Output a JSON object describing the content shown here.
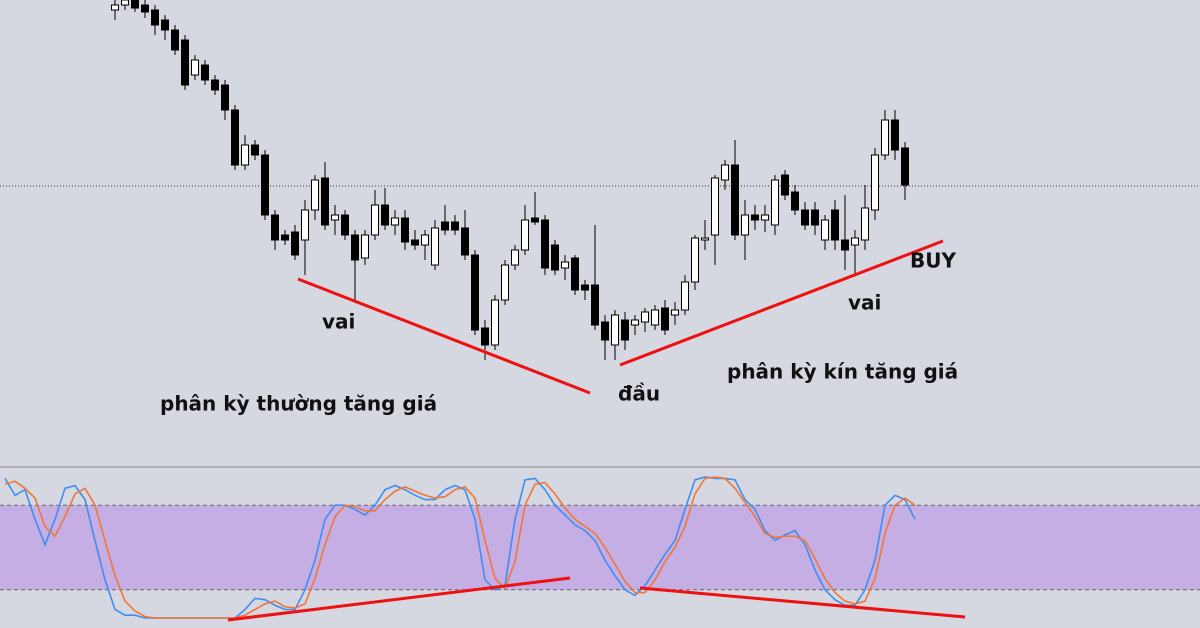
{
  "chart_data": [
    {
      "type": "candlestick",
      "annotations": [
        "vai",
        "phân kỳ thường tăng giá",
        "đầu",
        "phân kỳ kín tăng giá",
        "vai",
        "BUY"
      ],
      "xlim": [
        -0.5,
        119.5
      ],
      "ylim": [
        0,
        460
      ],
      "price_line": 274,
      "up_color": "#ffffff",
      "down_color": "#000000",
      "x": [
        11,
        12,
        13,
        14,
        15,
        16,
        17,
        18,
        19,
        20,
        21,
        22,
        23,
        24,
        25,
        26,
        27,
        28,
        29,
        30,
        31,
        32,
        33,
        34,
        35,
        36,
        37,
        38,
        39,
        40,
        41,
        42,
        43,
        44,
        45,
        46,
        47,
        48,
        49,
        50,
        51,
        52,
        53,
        54,
        55,
        56,
        57,
        58,
        59,
        60,
        61,
        62,
        63,
        64,
        65,
        66,
        67,
        68,
        69,
        70,
        71,
        72,
        73,
        74,
        75,
        76,
        77,
        78,
        79,
        80,
        81,
        82,
        83,
        84,
        85,
        86,
        87,
        88,
        89,
        90
      ],
      "open": [
        450,
        455,
        460,
        455,
        450,
        440,
        430,
        420,
        385,
        395,
        380,
        375,
        350,
        295,
        315,
        305,
        245,
        225,
        228,
        220,
        250,
        282,
        240,
        245,
        225,
        202,
        225,
        255,
        235,
        242,
        220,
        215,
        195,
        238,
        238,
        232,
        205,
        132,
        115,
        160,
        195,
        210,
        242,
        240,
        215,
        192,
        202,
        175,
        175,
        138,
        115,
        140,
        135,
        138,
        135,
        152,
        145,
        150,
        178,
        220,
        225,
        280,
        295,
        225,
        245,
        240,
        235,
        285,
        268,
        250,
        250,
        220,
        250,
        220,
        215,
        220,
        250,
        305,
        340,
        312
      ],
      "high": [
        460,
        460,
        460,
        460,
        455,
        445,
        435,
        425,
        405,
        400,
        385,
        380,
        355,
        325,
        320,
        310,
        250,
        230,
        235,
        260,
        285,
        298,
        255,
        250,
        230,
        230,
        270,
        272,
        250,
        250,
        230,
        230,
        240,
        255,
        245,
        250,
        210,
        140,
        165,
        200,
        215,
        255,
        268,
        245,
        220,
        205,
        205,
        180,
        235,
        145,
        150,
        148,
        145,
        152,
        155,
        160,
        158,
        185,
        225,
        240,
        285,
        300,
        320,
        260,
        255,
        255,
        285,
        290,
        275,
        258,
        258,
        245,
        260,
        265,
        230,
        275,
        312,
        350,
        350,
        318
      ],
      "low": [
        440,
        450,
        448,
        442,
        425,
        420,
        405,
        370,
        380,
        375,
        365,
        340,
        290,
        290,
        300,
        240,
        210,
        215,
        200,
        185,
        240,
        230,
        225,
        220,
        160,
        195,
        220,
        230,
        225,
        210,
        210,
        200,
        190,
        225,
        225,
        200,
        125,
        100,
        110,
        155,
        190,
        205,
        235,
        185,
        185,
        180,
        165,
        160,
        130,
        100,
        100,
        110,
        125,
        128,
        130,
        125,
        135,
        145,
        170,
        210,
        195,
        270,
        220,
        200,
        230,
        228,
        225,
        260,
        245,
        230,
        225,
        210,
        210,
        190,
        185,
        210,
        240,
        300,
        300,
        260
      ],
      "close": [
        455,
        460,
        452,
        448,
        435,
        430,
        410,
        375,
        400,
        380,
        370,
        350,
        295,
        315,
        305,
        245,
        220,
        220,
        205,
        250,
        280,
        235,
        245,
        225,
        200,
        225,
        255,
        235,
        242,
        218,
        215,
        225,
        232,
        230,
        230,
        205,
        130,
        115,
        160,
        195,
        210,
        240,
        238,
        192,
        190,
        198,
        170,
        170,
        135,
        120,
        145,
        120,
        140,
        148,
        150,
        130,
        150,
        178,
        222,
        222,
        282,
        295,
        225,
        245,
        240,
        245,
        280,
        265,
        250,
        235,
        235,
        240,
        220,
        210,
        222,
        252,
        305,
        340,
        310,
        275
      ]
    },
    {
      "type": "line",
      "xlim": [
        -0.5,
        119.5
      ],
      "ylim": [
        0,
        100
      ],
      "levels": [
        20,
        80
      ],
      "band_color": "#c5aee3",
      "x": [
        0,
        1,
        2,
        3,
        4,
        5,
        6,
        7,
        8,
        9,
        10,
        11,
        12,
        13,
        14,
        15,
        16,
        17,
        18,
        19,
        20,
        21,
        22,
        23,
        24,
        25,
        26,
        27,
        28,
        29,
        30,
        31,
        32,
        33,
        34,
        35,
        36,
        37,
        38,
        39,
        40,
        41,
        42,
        43,
        44,
        45,
        46,
        47,
        48,
        49,
        50,
        51,
        52,
        53,
        54,
        55,
        56,
        57,
        58,
        59,
        60,
        61,
        62,
        63,
        64,
        65,
        66,
        67,
        68,
        69,
        70,
        71,
        72,
        73,
        74,
        75,
        76,
        77,
        78,
        79,
        80,
        81,
        82,
        83,
        84,
        85,
        86,
        87,
        88,
        89,
        90,
        91
      ],
      "series": [
        {
          "color": "#3f8ef0",
          "values": [
            99,
            87,
            91,
            70,
            52,
            70,
            92,
            94,
            84,
            55,
            27,
            6,
            2,
            2,
            0,
            0,
            0,
            0,
            0,
            0,
            0,
            0,
            0,
            0,
            6,
            14,
            13,
            9,
            6,
            6,
            20,
            41,
            70,
            80,
            80,
            77,
            73,
            80,
            91,
            94,
            91,
            87,
            84,
            84,
            91,
            94,
            91,
            70,
            27,
            20,
            23,
            70,
            98,
            99,
            91,
            80,
            73,
            66,
            62,
            55,
            41,
            30,
            20,
            16,
            23,
            34,
            45,
            55,
            77,
            98,
            100,
            99,
            99,
            98,
            84,
            77,
            62,
            55,
            59,
            62,
            52,
            34,
            20,
            13,
            9,
            9,
            20,
            41,
            80,
            87,
            84,
            70
          ]
        },
        {
          "color": "#f0763a",
          "values": [
            95,
            97,
            92,
            85,
            65,
            58,
            72,
            88,
            92,
            80,
            55,
            30,
            12,
            5,
            1,
            0,
            0,
            0,
            0,
            0,
            0,
            0,
            0,
            0,
            2,
            6,
            10,
            12,
            8,
            7,
            10,
            28,
            52,
            72,
            80,
            79,
            76,
            76,
            84,
            90,
            93,
            90,
            87,
            85,
            86,
            91,
            93,
            85,
            55,
            28,
            21,
            40,
            80,
            95,
            96,
            88,
            78,
            70,
            65,
            60,
            50,
            38,
            26,
            18,
            18,
            27,
            40,
            50,
            65,
            88,
            99,
            100,
            99,
            92,
            82,
            72,
            60,
            57,
            58,
            58,
            55,
            42,
            28,
            18,
            12,
            10,
            12,
            28,
            60,
            80,
            85,
            80
          ]
        }
      ]
    }
  ]
}
